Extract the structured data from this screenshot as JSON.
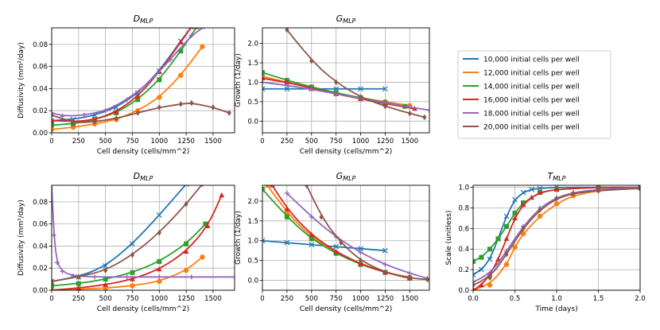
{
  "figure": {
    "legend": {
      "placement": "top-right",
      "entries": [
        {
          "label": "10,000 initial cells per well",
          "color": "#1f77b4"
        },
        {
          "label": "12,000 initial cells per well",
          "color": "#ff7f0e"
        },
        {
          "label": "14,000 initial cells per well",
          "color": "#2ca02c"
        },
        {
          "label": "16,000 initial cells per well",
          "color": "#d62728"
        },
        {
          "label": "18,000 initial cells per well",
          "color": "#9467bd"
        },
        {
          "label": "20,000 initial cells per well",
          "color": "#8c564b"
        }
      ]
    }
  },
  "chart_data": [
    {
      "id": "d_top",
      "type": "line",
      "title": "D",
      "title_sub": "MLP",
      "xlabel": "Cell density (cells/mm^2)",
      "ylabel": "Diffusivity (mm²/day)",
      "xlim": [
        0,
        1700
      ],
      "ylim": [
        0,
        0.095
      ],
      "xticks": [
        0,
        250,
        500,
        750,
        1000,
        1250,
        1500
      ],
      "yticks": [
        0.0,
        0.02,
        0.04,
        0.06,
        0.08
      ],
      "ytick_labels": [
        "0.00",
        "0.02",
        "0.04",
        "0.06",
        "0.08"
      ],
      "grid": true,
      "series": [
        {
          "name": "10,000 initial cells per well",
          "color": "#1f77b4",
          "marker": "x",
          "x": [
            0,
            200,
            400,
            600,
            800,
            1000,
            1200,
            1300
          ],
          "y": [
            0.011,
            0.012,
            0.016,
            0.023,
            0.036,
            0.056,
            0.083,
            0.096
          ]
        },
        {
          "name": "12,000 initial cells per well",
          "color": "#ff7f0e",
          "marker": "o",
          "x": [
            0,
            200,
            400,
            600,
            800,
            1000,
            1200,
            1400
          ],
          "y": [
            0.003,
            0.005,
            0.008,
            0.012,
            0.02,
            0.032,
            0.052,
            0.078
          ]
        },
        {
          "name": "14,000 initial cells per well",
          "color": "#2ca02c",
          "marker": "s",
          "x": [
            0,
            200,
            400,
            600,
            800,
            1000,
            1200,
            1350
          ],
          "y": [
            0.007,
            0.008,
            0.012,
            0.018,
            0.03,
            0.048,
            0.074,
            0.096
          ]
        },
        {
          "name": "16,000 initial cells per well",
          "color": "#d62728",
          "marker": "^",
          "x": [
            0,
            200,
            400,
            600,
            800,
            1000,
            1200,
            1300
          ],
          "y": [
            0.011,
            0.01,
            0.012,
            0.019,
            0.033,
            0.055,
            0.082,
            0.096
          ]
        },
        {
          "name": "18,000 initial cells per well",
          "color": "#9467bd",
          "marker": "+",
          "x": [
            0,
            100,
            300,
            500,
            700,
            900,
            1100,
            1300,
            1420
          ],
          "y": [
            0.018,
            0.015,
            0.016,
            0.02,
            0.03,
            0.045,
            0.066,
            0.088,
            0.096
          ]
        },
        {
          "name": "20,000 initial cells per well",
          "color": "#8c564b",
          "marker": "d",
          "x": [
            0,
            200,
            400,
            600,
            800,
            1000,
            1200,
            1300,
            1500,
            1650
          ],
          "y": [
            0.016,
            0.009,
            0.01,
            0.013,
            0.018,
            0.023,
            0.026,
            0.027,
            0.023,
            0.018
          ]
        }
      ]
    },
    {
      "id": "g_top",
      "type": "line",
      "title": "G",
      "title_sub": "MLP",
      "xlabel": "Cell density (cells/mm^2)",
      "ylabel": "Growth (1/day)",
      "xlim": [
        0,
        1700
      ],
      "ylim": [
        -0.3,
        2.4
      ],
      "xticks": [
        0,
        250,
        500,
        750,
        1000,
        1250,
        1500
      ],
      "yticks": [
        0.0,
        0.5,
        1.0,
        1.5,
        2.0
      ],
      "ytick_labels": [
        "0.0",
        "0.5",
        "1.0",
        "1.5",
        "2.0"
      ],
      "grid": true,
      "series": [
        {
          "name": "10,000 initial cells per well",
          "color": "#1f77b4",
          "marker": "x",
          "x": [
            0,
            250,
            500,
            750,
            1000,
            1250
          ],
          "y": [
            0.83,
            0.83,
            0.83,
            0.83,
            0.83,
            0.83
          ]
        },
        {
          "name": "12,000 initial cells per well",
          "color": "#ff7f0e",
          "marker": "o",
          "x": [
            0,
            250,
            500,
            750,
            1000,
            1250,
            1500
          ],
          "y": [
            1.15,
            1.0,
            0.85,
            0.72,
            0.6,
            0.5,
            0.4
          ]
        },
        {
          "name": "14,000 initial cells per well",
          "color": "#2ca02c",
          "marker": "s",
          "x": [
            0,
            250,
            500,
            750,
            1000,
            1250,
            1450
          ],
          "y": [
            1.25,
            1.05,
            0.88,
            0.73,
            0.6,
            0.48,
            0.38
          ]
        },
        {
          "name": "16,000 initial cells per well",
          "color": "#d62728",
          "marker": "^",
          "x": [
            0,
            250,
            500,
            750,
            1000,
            1250,
            1550
          ],
          "y": [
            1.1,
            1.0,
            0.85,
            0.7,
            0.57,
            0.45,
            0.32
          ]
        },
        {
          "name": "18,000 initial cells per well",
          "color": "#9467bd",
          "marker": "+",
          "x": [
            0,
            250,
            500,
            750,
            1000,
            1250,
            1500,
            1700
          ],
          "y": [
            1.0,
            0.92,
            0.82,
            0.7,
            0.58,
            0.47,
            0.36,
            0.28
          ]
        },
        {
          "name": "20,000 initial cells per well",
          "color": "#8c564b",
          "marker": "d",
          "x": [
            250,
            500,
            750,
            1000,
            1250,
            1500,
            1650
          ],
          "y": [
            2.35,
            1.55,
            1.0,
            0.62,
            0.38,
            0.2,
            0.1
          ]
        }
      ]
    },
    {
      "id": "d_bot",
      "type": "line",
      "title": "D",
      "title_sub": "MLP",
      "xlabel": "Cell density (cells/mm^2)",
      "ylabel": "Diffusivity (mm²/day)",
      "xlim": [
        0,
        1700
      ],
      "ylim": [
        0,
        0.095
      ],
      "xticks": [
        0,
        250,
        500,
        750,
        1000,
        1250,
        1500
      ],
      "yticks": [
        0.0,
        0.02,
        0.04,
        0.06,
        0.08
      ],
      "ytick_labels": [
        "0.00",
        "0.02",
        "0.04",
        "0.06",
        "0.08"
      ],
      "grid": true,
      "series": [
        {
          "name": "10,000 initial cells per well",
          "color": "#1f77b4",
          "marker": "x",
          "x": [
            0,
            250,
            500,
            750,
            1000,
            1250
          ],
          "y": [
            0.008,
            0.012,
            0.022,
            0.042,
            0.068,
            0.096
          ]
        },
        {
          "name": "12,000 initial cells per well",
          "color": "#ff7f0e",
          "marker": "o",
          "x": [
            0,
            250,
            500,
            750,
            1000,
            1250,
            1400
          ],
          "y": [
            0.0,
            0.001,
            0.002,
            0.004,
            0.008,
            0.018,
            0.03
          ]
        },
        {
          "name": "14,000 initial cells per well",
          "color": "#2ca02c",
          "marker": "s",
          "x": [
            0,
            250,
            500,
            750,
            1000,
            1250,
            1430
          ],
          "y": [
            0.004,
            0.006,
            0.01,
            0.016,
            0.026,
            0.042,
            0.06
          ]
        },
        {
          "name": "16,000 initial cells per well",
          "color": "#d62728",
          "marker": "^",
          "x": [
            0,
            250,
            500,
            750,
            1000,
            1250,
            1450,
            1580
          ],
          "y": [
            0.0,
            0.002,
            0.005,
            0.01,
            0.019,
            0.035,
            0.058,
            0.086
          ]
        },
        {
          "name": "18,000 initial cells per well",
          "color": "#9467bd",
          "marker": "+",
          "x": [
            0,
            20,
            50,
            100,
            200,
            400,
            700,
            1000,
            1300,
            1700
          ],
          "y": [
            0.096,
            0.05,
            0.025,
            0.017,
            0.013,
            0.012,
            0.012,
            0.012,
            0.012,
            0.012
          ]
        },
        {
          "name": "20,000 initial cells per well",
          "color": "#8c564b",
          "marker": "d",
          "x": [
            0,
            250,
            500,
            750,
            1000,
            1250,
            1400
          ],
          "y": [
            0.008,
            0.012,
            0.018,
            0.032,
            0.052,
            0.078,
            0.096
          ]
        }
      ]
    },
    {
      "id": "g_bot",
      "type": "line",
      "title": "G",
      "title_sub": "MLP",
      "xlabel": "Cell density (cells/mm^2)",
      "ylabel": "Growth (1/day)",
      "xlim": [
        0,
        1700
      ],
      "ylim": [
        -0.25,
        2.4
      ],
      "xticks": [
        0,
        250,
        500,
        750,
        1000,
        1250,
        1500
      ],
      "yticks": [
        0.0,
        0.5,
        1.0,
        1.5,
        2.0
      ],
      "ytick_labels": [
        "0.0",
        "0.5",
        "1.0",
        "1.5",
        "2.0"
      ],
      "grid": true,
      "series": [
        {
          "name": "10,000 initial cells per well",
          "color": "#1f77b4",
          "marker": "x",
          "x": [
            0,
            250,
            500,
            750,
            1000,
            1250
          ],
          "y": [
            1.0,
            0.95,
            0.9,
            0.85,
            0.8,
            0.75
          ]
        },
        {
          "name": "12,000 initial cells per well",
          "color": "#ff7f0e",
          "marker": "o",
          "x": [
            50,
            250,
            500,
            750,
            1000,
            1250,
            1500
          ],
          "y": [
            2.4,
            1.7,
            1.1,
            0.7,
            0.4,
            0.2,
            0.08
          ]
        },
        {
          "name": "14,000 initial cells per well",
          "color": "#2ca02c",
          "marker": "s",
          "x": [
            0,
            250,
            500,
            750,
            1000,
            1250,
            1500
          ],
          "y": [
            2.3,
            1.6,
            1.05,
            0.68,
            0.4,
            0.2,
            0.05
          ]
        },
        {
          "name": "16,000 initial cells per well",
          "color": "#d62728",
          "marker": "^",
          "x": [
            100,
            250,
            500,
            750,
            1000,
            1250,
            1500
          ],
          "y": [
            2.4,
            1.8,
            1.15,
            0.72,
            0.42,
            0.2,
            0.05
          ]
        },
        {
          "name": "18,000 initial cells per well",
          "color": "#9467bd",
          "marker": "+",
          "x": [
            250,
            500,
            750,
            1000,
            1250,
            1500,
            1680
          ],
          "y": [
            2.2,
            1.6,
            1.1,
            0.7,
            0.4,
            0.18,
            0.05
          ]
        },
        {
          "name": "20,000 initial cells per well",
          "color": "#8c564b",
          "marker": "d",
          "x": [
            450,
            600,
            800,
            1000,
            1250,
            1500,
            1680
          ],
          "y": [
            2.4,
            1.6,
            0.95,
            0.5,
            0.2,
            0.06,
            0.02
          ]
        }
      ]
    },
    {
      "id": "t_bot",
      "type": "line",
      "title": "T",
      "title_sub": "MLP",
      "xlabel": "Time (days)",
      "ylabel": "Scale (unitless)",
      "xlim": [
        0,
        2.0
      ],
      "ylim": [
        0,
        1.02
      ],
      "xticks": [
        0.0,
        0.5,
        1.0,
        1.5,
        2.0
      ],
      "xtick_labels": [
        "0.0",
        "0.5",
        "1.0",
        "1.5",
        "2.0"
      ],
      "yticks": [
        0.0,
        0.2,
        0.4,
        0.6,
        0.8,
        1.0
      ],
      "ytick_labels": [
        "0.0",
        "0.2",
        "0.4",
        "0.6",
        "0.8",
        "1.0"
      ],
      "grid": true,
      "series": [
        {
          "name": "10,000 initial cells per well",
          "color": "#1f77b4",
          "marker": "x",
          "x": [
            0,
            0.1,
            0.2,
            0.3,
            0.4,
            0.5,
            0.6,
            0.7,
            0.8,
            1.0,
            1.5,
            2.0
          ],
          "y": [
            0.15,
            0.2,
            0.3,
            0.5,
            0.72,
            0.88,
            0.95,
            0.98,
            0.99,
            1.0,
            1.0,
            1.0
          ]
        },
        {
          "name": "12,000 initial cells per well",
          "color": "#ff7f0e",
          "marker": "o",
          "x": [
            0,
            0.2,
            0.4,
            0.5,
            0.6,
            0.8,
            1.0,
            1.2,
            1.5,
            2.0
          ],
          "y": [
            0.0,
            0.05,
            0.25,
            0.42,
            0.55,
            0.72,
            0.84,
            0.92,
            0.97,
            0.99
          ]
        },
        {
          "name": "14,000 initial cells per well",
          "color": "#2ca02c",
          "marker": "s",
          "x": [
            0,
            0.1,
            0.2,
            0.3,
            0.4,
            0.5,
            0.6,
            0.8,
            1.0,
            1.5,
            2.0
          ],
          "y": [
            0.28,
            0.32,
            0.4,
            0.5,
            0.62,
            0.75,
            0.85,
            0.95,
            0.98,
            1.0,
            1.0
          ]
        },
        {
          "name": "16,000 initial cells per well",
          "color": "#d62728",
          "marker": "^",
          "x": [
            0,
            0.1,
            0.2,
            0.3,
            0.4,
            0.5,
            0.6,
            0.7,
            0.8,
            1.0,
            1.5,
            2.0
          ],
          "y": [
            0.0,
            0.05,
            0.15,
            0.3,
            0.5,
            0.7,
            0.83,
            0.9,
            0.95,
            0.98,
            1.0,
            1.0
          ]
        },
        {
          "name": "18,000 initial cells per well",
          "color": "#9467bd",
          "marker": "+",
          "x": [
            0,
            0.2,
            0.4,
            0.6,
            0.8,
            1.0,
            1.2,
            1.5,
            2.0
          ],
          "y": [
            0.08,
            0.15,
            0.38,
            0.62,
            0.8,
            0.9,
            0.95,
            0.98,
            1.0
          ]
        },
        {
          "name": "20,000 initial cells per well",
          "color": "#8c564b",
          "marker": "d",
          "x": [
            0,
            0.2,
            0.4,
            0.6,
            0.8,
            1.0,
            1.2,
            1.5,
            2.0
          ],
          "y": [
            0.05,
            0.12,
            0.35,
            0.6,
            0.78,
            0.89,
            0.94,
            0.97,
            0.99
          ]
        }
      ]
    }
  ]
}
